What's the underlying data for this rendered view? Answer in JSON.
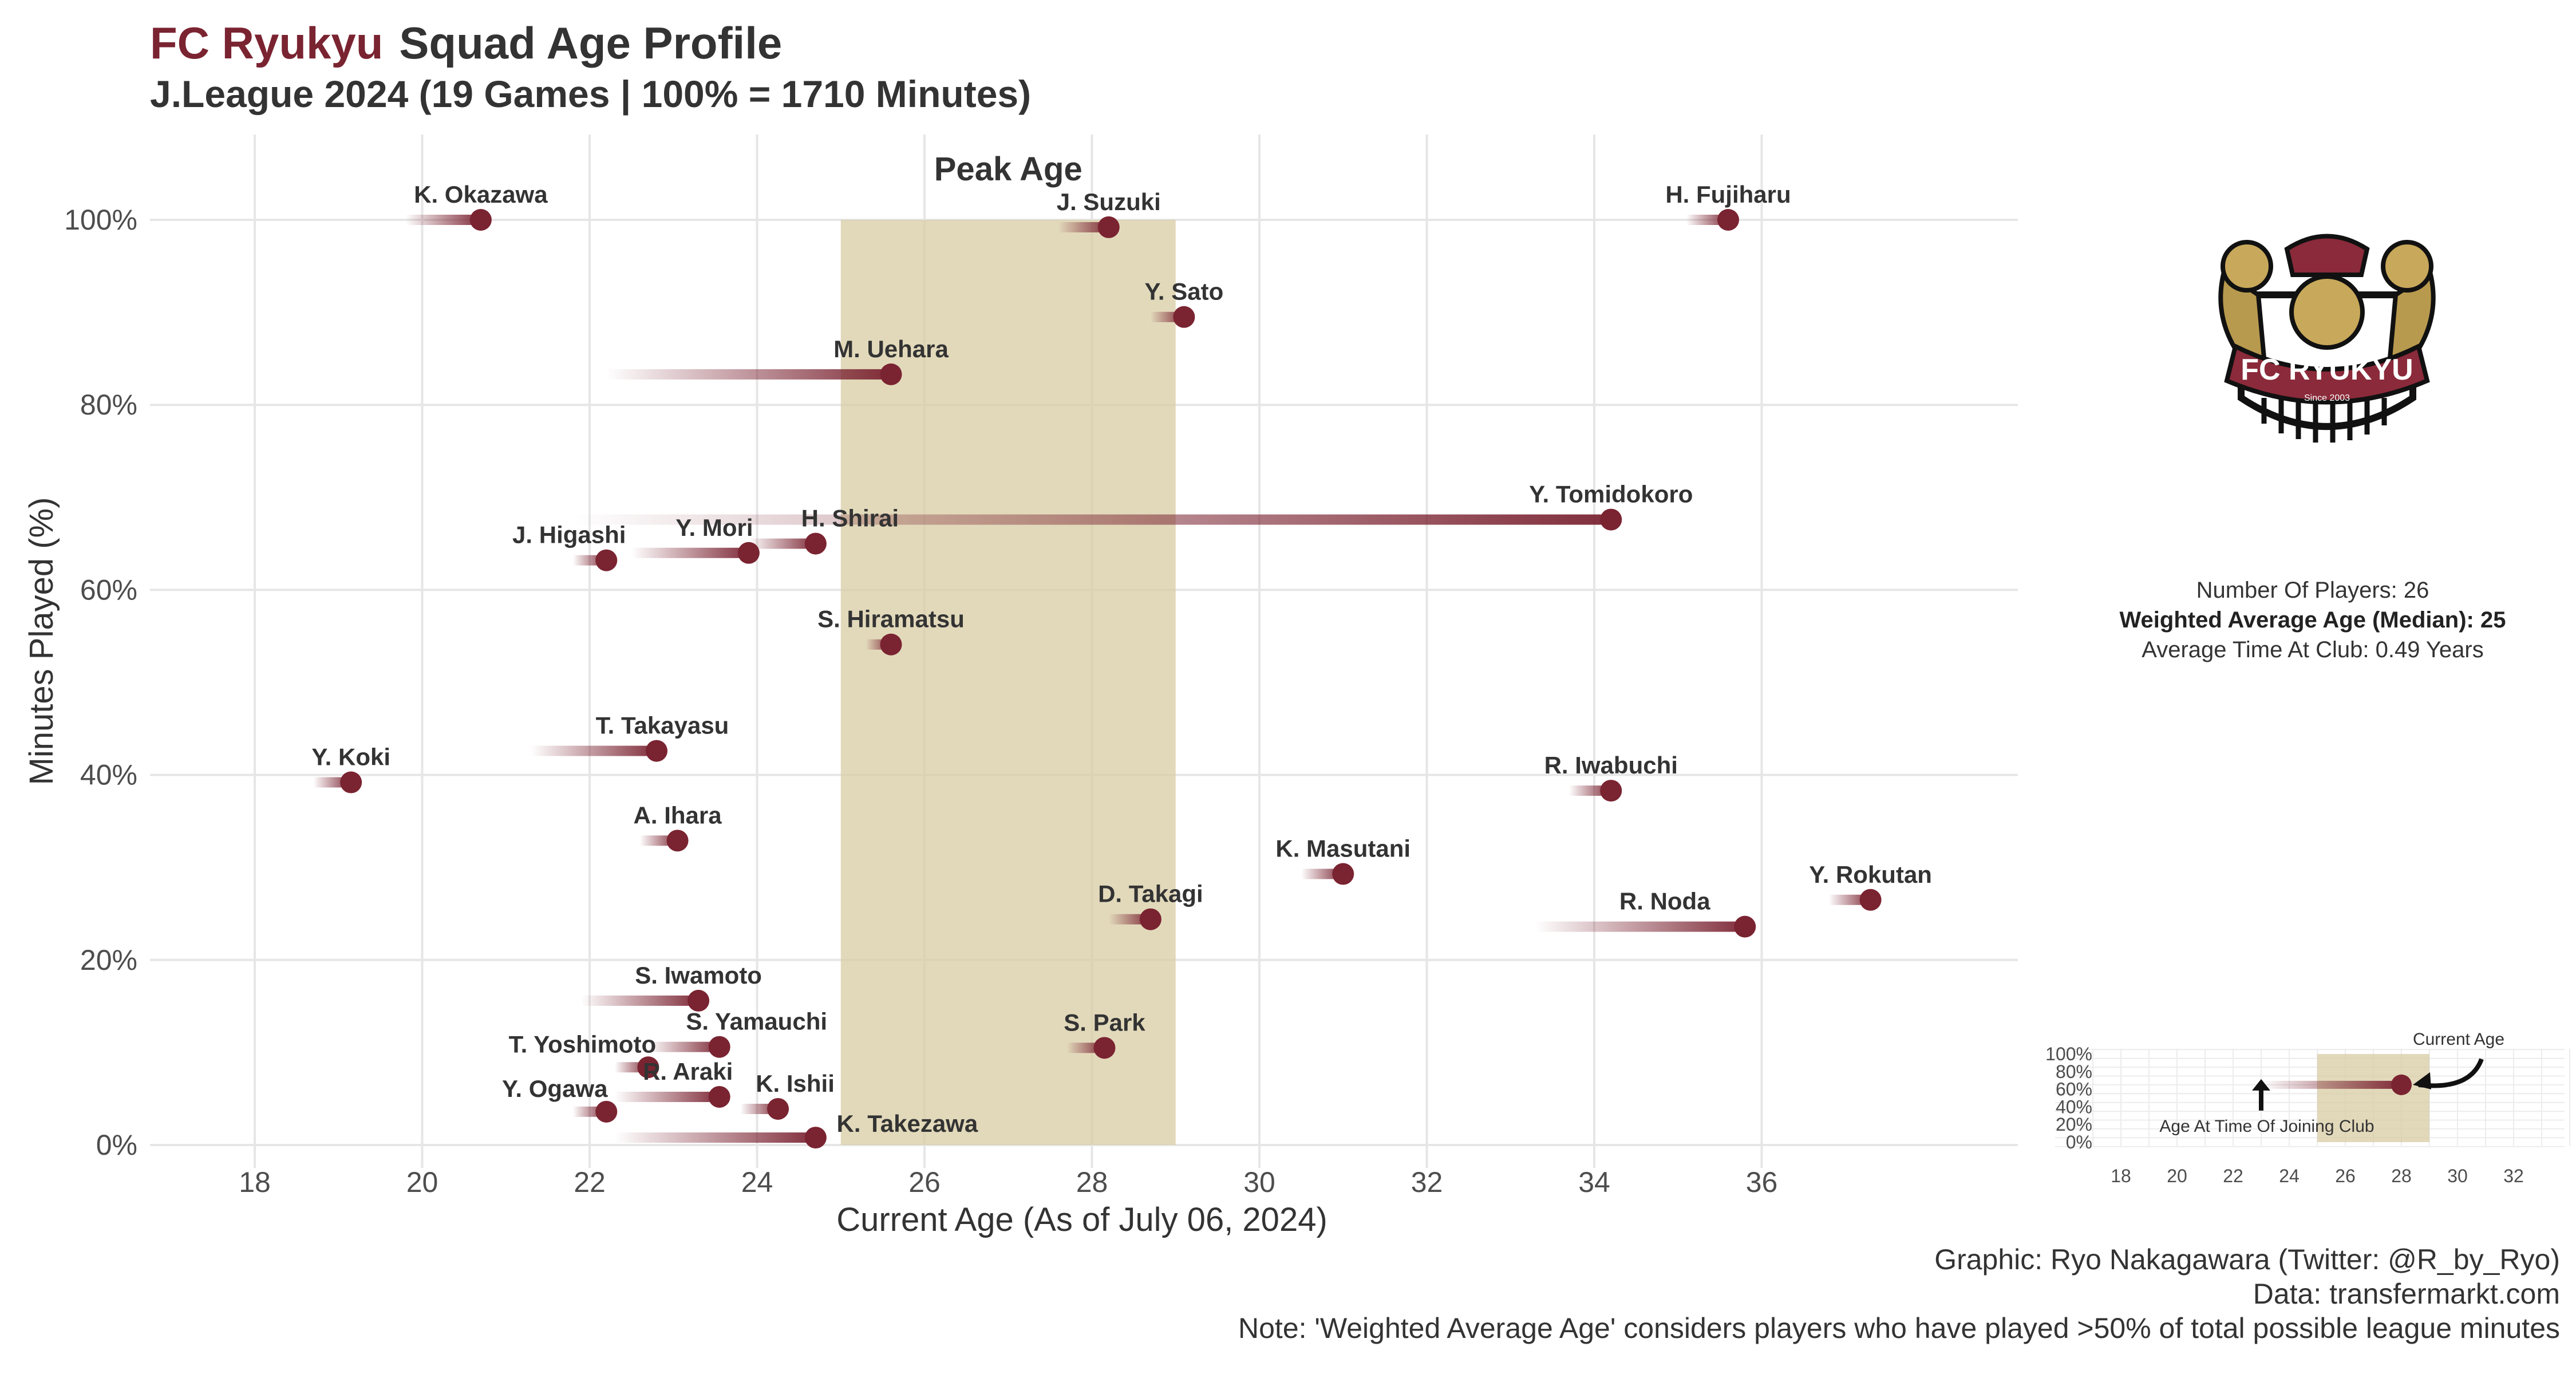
{
  "header": {
    "club": "FC Ryukyu",
    "title": "Squad Age Profile",
    "subtitle": "J.League 2024 (19 Games | 100% = 1710 Minutes)"
  },
  "chart_data": {
    "type": "scatter",
    "title": "FC Ryukyu Squad Age Profile",
    "subtitle": "J.League 2024 (19 Games | 100% = 1710 Minutes)",
    "xlabel": "Current Age (As of July 06, 2024)",
    "ylabel": "Minutes Played (%)",
    "xlim": [
      16.7,
      39.0
    ],
    "ylim": [
      -2,
      109
    ],
    "x_ticks": [
      18,
      20,
      22,
      24,
      26,
      28,
      30,
      32,
      34,
      36
    ],
    "x_tick_labels": [
      "18",
      "20",
      "22",
      "24",
      "26",
      "28",
      "30",
      "32",
      "34",
      "36"
    ],
    "y_ticks": [
      0,
      20,
      40,
      60,
      80,
      100
    ],
    "y_tick_labels": [
      "0%",
      "20%",
      "40%",
      "60%",
      "80%",
      "100%"
    ],
    "grid": true,
    "peak_age": {
      "label": "Peak Age",
      "from": 25,
      "to": 29
    },
    "players": [
      {
        "name": "K. Okazawa",
        "age": 20.7,
        "joined_age": 19.8,
        "minutes_pct": 100.0
      },
      {
        "name": "J. Suzuki",
        "age": 28.2,
        "joined_age": 27.6,
        "minutes_pct": 99.2
      },
      {
        "name": "H. Fujiharu",
        "age": 35.6,
        "joined_age": 35.1,
        "minutes_pct": 100.0
      },
      {
        "name": "Y. Sato",
        "age": 29.1,
        "joined_age": 28.7,
        "minutes_pct": 89.5
      },
      {
        "name": "M. Uehara",
        "age": 25.6,
        "joined_age": 22.2,
        "minutes_pct": 83.3
      },
      {
        "name": "Y. Tomidokoro",
        "age": 34.2,
        "joined_age": 21.8,
        "minutes_pct": 67.6
      },
      {
        "name": "H. Shirai",
        "age": 24.7,
        "joined_age": 23.9,
        "minutes_pct": 65.0
      },
      {
        "name": "Y. Mori",
        "age": 23.9,
        "joined_age": 22.5,
        "minutes_pct": 64.0
      },
      {
        "name": "J. Higashi",
        "age": 22.2,
        "joined_age": 21.8,
        "minutes_pct": 63.2
      },
      {
        "name": "S. Hiramatsu",
        "age": 25.6,
        "joined_age": 25.3,
        "minutes_pct": 54.1
      },
      {
        "name": "T. Takayasu",
        "age": 22.8,
        "joined_age": 21.3,
        "minutes_pct": 42.6
      },
      {
        "name": "Y. Koki",
        "age": 19.15,
        "joined_age": 18.7,
        "minutes_pct": 39.2
      },
      {
        "name": "R. Iwabuchi",
        "age": 34.2,
        "joined_age": 33.7,
        "minutes_pct": 38.3
      },
      {
        "name": "A. Ihara",
        "age": 23.05,
        "joined_age": 22.6,
        "minutes_pct": 32.9
      },
      {
        "name": "K. Masutani",
        "age": 31.0,
        "joined_age": 30.5,
        "minutes_pct": 29.3
      },
      {
        "name": "Y. Rokutan",
        "age": 37.3,
        "joined_age": 36.8,
        "minutes_pct": 26.5
      },
      {
        "name": "D. Takagi",
        "age": 28.7,
        "joined_age": 28.2,
        "minutes_pct": 24.4
      },
      {
        "name": "R. Noda",
        "age": 35.8,
        "joined_age": 33.3,
        "minutes_pct": 23.6
      },
      {
        "name": "S. Iwamoto",
        "age": 23.3,
        "joined_age": 21.9,
        "minutes_pct": 15.6
      },
      {
        "name": "S. Yamauchi",
        "age": 23.55,
        "joined_age": 22.7,
        "minutes_pct": 10.6
      },
      {
        "name": "S. Park",
        "age": 28.15,
        "joined_age": 27.7,
        "minutes_pct": 10.5
      },
      {
        "name": "T. Yoshimoto",
        "age": 22.7,
        "joined_age": 22.3,
        "minutes_pct": 8.4
      },
      {
        "name": "R. Araki",
        "age": 23.55,
        "joined_age": 22.3,
        "minutes_pct": 5.2
      },
      {
        "name": "K. Ishii",
        "age": 24.25,
        "joined_age": 23.8,
        "minutes_pct": 3.9
      },
      {
        "name": "Y. Ogawa",
        "age": 22.2,
        "joined_age": 21.8,
        "minutes_pct": 3.6
      },
      {
        "name": "K. Takezawa",
        "age": 24.7,
        "joined_age": 22.3,
        "minutes_pct": 0.8
      }
    ]
  },
  "stats": {
    "num_players": "Number Of Players: 26",
    "weighted_age": "Weighted Average Age (Median): 25",
    "avg_time": "Average Time At Club: 0.49 Years"
  },
  "legend_inset": {
    "x_ticks": [
      18,
      20,
      22,
      24,
      26,
      28,
      30,
      32
    ],
    "x_tick_labels": [
      "18",
      "20",
      "22",
      "24",
      "26",
      "28",
      "30",
      "32"
    ],
    "y_ticks": [
      0,
      20,
      40,
      60,
      80,
      100
    ],
    "y_tick_labels": [
      "0%",
      "20%",
      "40%",
      "60%",
      "80%",
      "100%"
    ],
    "example": {
      "age": 28,
      "joined_age": 23,
      "minutes_pct": 65
    },
    "current_age_label": "Current Age",
    "joining_age_label": "Age At Time Of Joining Club"
  },
  "crest": {
    "text": "FC RYUKYU",
    "since": "Since 2003"
  },
  "caption": {
    "line1": "Graphic: Ryo Nakagawara (Twitter: @R_by_Ryo)",
    "line2": "Data: transfermarkt.com",
    "line3": "Note: 'Weighted Average Age' considers players who have played >50% of total possible league minutes"
  },
  "colors": {
    "accent": "#7a2331",
    "peak_band": "#d8cca4",
    "grid": "#e6e6e6",
    "text": "#333333"
  }
}
